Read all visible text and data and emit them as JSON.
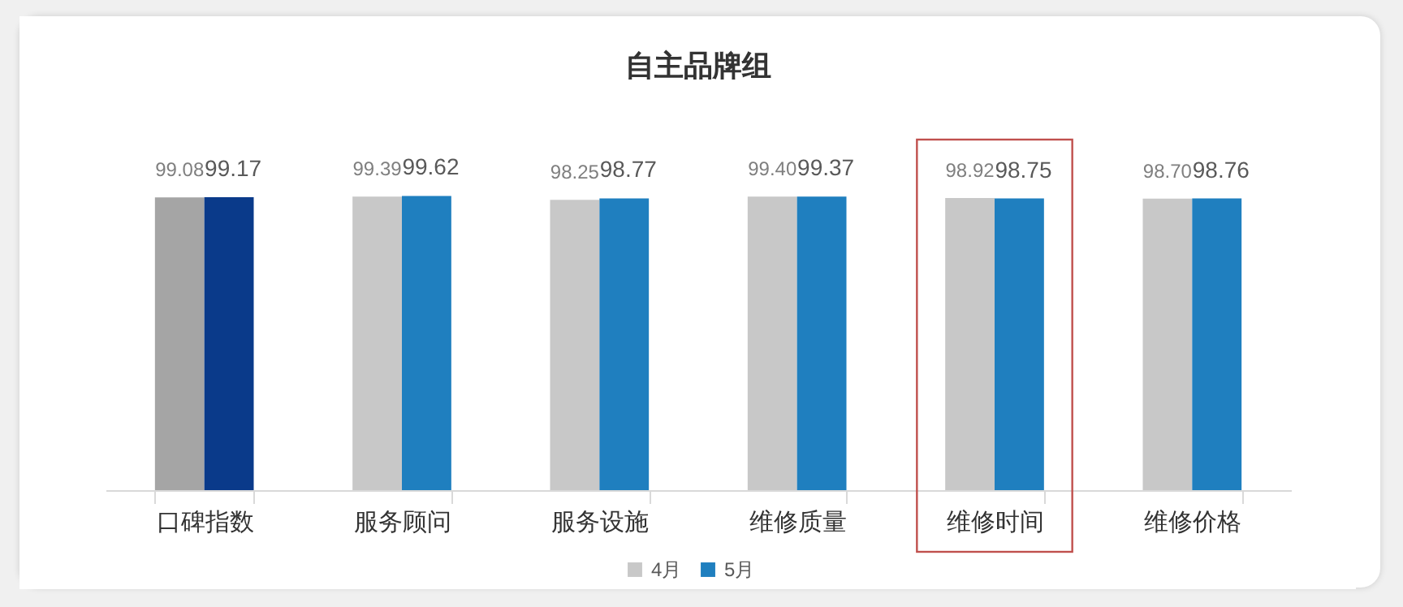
{
  "chart_data": {
    "type": "bar",
    "title": "自主品牌组",
    "categories": [
      "口碑指数",
      "服务顾问",
      "服务设施",
      "维修质量",
      "维修时间",
      "维修价格"
    ],
    "series": [
      {
        "name": "4月",
        "color": "#c8c8c8",
        "colors": [
          "#a5a5a5",
          "#c8c8c8",
          "#c8c8c8",
          "#c8c8c8",
          "#c8c8c8",
          "#c8c8c8"
        ],
        "values": [
          99.08,
          99.39,
          98.25,
          99.4,
          98.92,
          98.7
        ],
        "value_labels": [
          "99.08",
          "99.39",
          "98.25",
          "99.40",
          "98.92",
          "98.70"
        ]
      },
      {
        "name": "5月",
        "color": "#1f7fbf",
        "colors": [
          "#0a3a8a",
          "#1f7fbf",
          "#1f7fbf",
          "#1f7fbf",
          "#1f7fbf",
          "#1f7fbf"
        ],
        "values": [
          99.17,
          99.62,
          98.77,
          99.37,
          98.75,
          98.76
        ],
        "value_labels": [
          "99.17",
          "99.62",
          "98.77",
          "99.37",
          "98.75",
          "98.76"
        ]
      }
    ],
    "legend": "bottom",
    "grid": false
  }
}
